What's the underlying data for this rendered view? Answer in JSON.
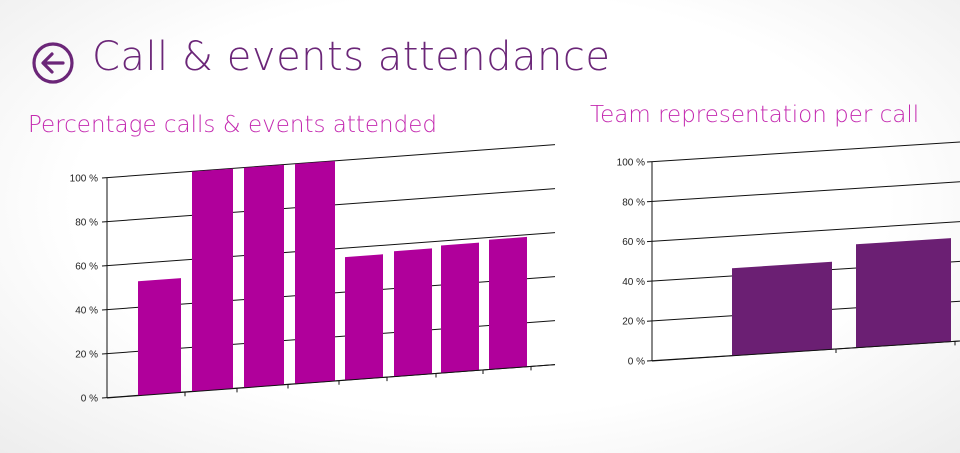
{
  "header": {
    "title": "Call & events attendance",
    "back_icon": "back-arrow-icon",
    "accent_color": "#6b2678"
  },
  "chart_data": [
    {
      "type": "bar",
      "title": "Percentage calls & events attended",
      "categories": [
        "",
        "",
        "",
        "",
        "",
        "",
        "",
        ""
      ],
      "values": [
        52,
        100,
        100,
        100,
        56,
        57,
        58,
        59
      ],
      "ylim": [
        0,
        100
      ],
      "y_ticks": [
        "0 %",
        "20 %",
        "40 %",
        "60 %",
        "80 %",
        "100 %"
      ],
      "bar_color": "#b0009b",
      "grid": true,
      "xlabel": "",
      "ylabel": ""
    },
    {
      "type": "bar",
      "title": "Team representation per call",
      "categories": [
        "",
        ""
      ],
      "values": [
        44,
        52
      ],
      "ylim": [
        0,
        100
      ],
      "y_ticks": [
        "0 %",
        "20 %",
        "40 %",
        "60 %",
        "80 %",
        "100 %"
      ],
      "bar_color": "#6b1f73",
      "grid": true,
      "xlabel": "",
      "ylabel": ""
    }
  ]
}
